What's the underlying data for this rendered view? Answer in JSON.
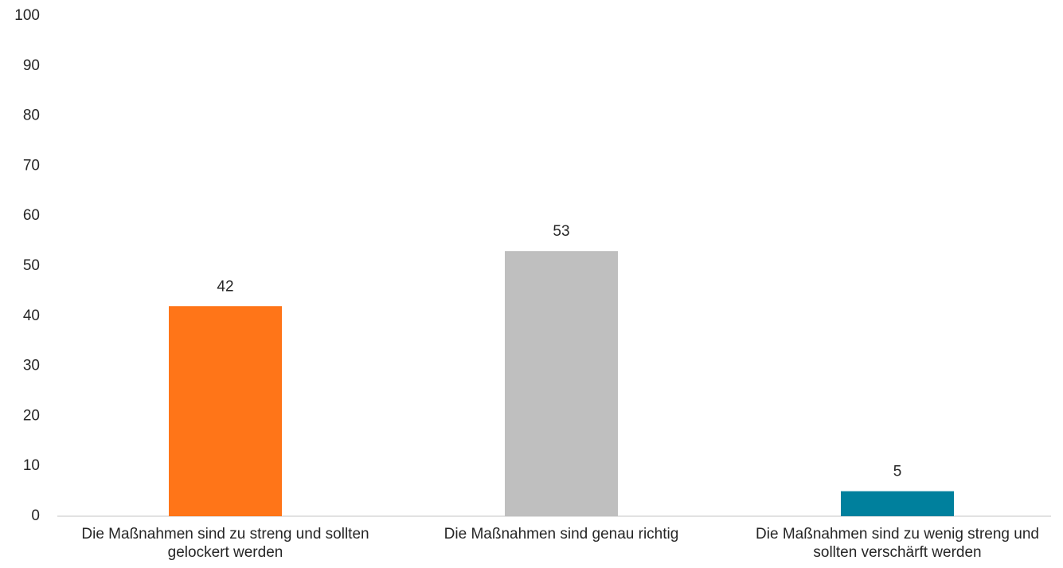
{
  "chart_data": {
    "type": "bar",
    "categories": [
      "Die Maßnahmen sind zu streng und sollten gelockert werden",
      "Die Maßnahmen sind genau richtig",
      "Die Maßnahmen sind zu wenig streng und sollten verschärft werden"
    ],
    "values": [
      42,
      53,
      5
    ],
    "colors": [
      "#ff7518",
      "#bfbfbf",
      "#00809d"
    ],
    "ylim": [
      0,
      100
    ],
    "yticks": [
      0,
      10,
      20,
      30,
      40,
      50,
      60,
      70,
      80,
      90,
      100
    ],
    "grid": false
  }
}
